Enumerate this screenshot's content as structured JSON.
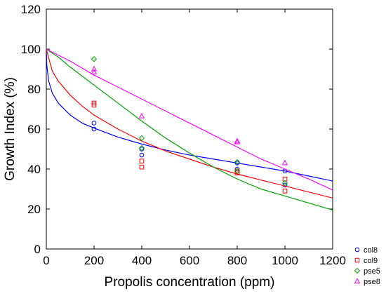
{
  "chart_data": {
    "type": "scatter",
    "title": "",
    "xlabel": "Propolis concentration (ppm)",
    "ylabel": "Growth Index (%)",
    "xlim": [
      0,
      1200
    ],
    "ylim": [
      0,
      120
    ],
    "x_ticks": [
      0,
      200,
      400,
      600,
      800,
      1000,
      1200
    ],
    "y_ticks": [
      0,
      20,
      40,
      60,
      80,
      100,
      120
    ],
    "grid": false,
    "legend_position": "bottom-right-outside",
    "series": [
      {
        "name": "col8",
        "color": "#0000ff",
        "marker": "circle",
        "points": [
          [
            200,
            63
          ],
          [
            200,
            60
          ],
          [
            400,
            50
          ],
          [
            400,
            47
          ],
          [
            800,
            43
          ],
          [
            800,
            40
          ],
          [
            1000,
            39
          ],
          [
            1000,
            32
          ]
        ],
        "fit": [
          [
            0,
            100
          ],
          [
            2,
            92
          ],
          [
            10,
            84
          ],
          [
            25,
            78
          ],
          [
            50,
            73
          ],
          [
            100,
            67
          ],
          [
            150,
            63
          ],
          [
            200,
            60.5
          ],
          [
            300,
            56
          ],
          [
            400,
            52.5
          ],
          [
            500,
            49.5
          ],
          [
            600,
            47
          ],
          [
            700,
            45
          ],
          [
            800,
            43
          ],
          [
            900,
            41
          ],
          [
            1000,
            39
          ],
          [
            1100,
            36.5
          ],
          [
            1200,
            34
          ]
        ]
      },
      {
        "name": "col9",
        "color": "#ff0000",
        "marker": "square",
        "points": [
          [
            200,
            73
          ],
          [
            200,
            72
          ],
          [
            400,
            44
          ],
          [
            400,
            41
          ],
          [
            800,
            39
          ],
          [
            800,
            38
          ],
          [
            1000,
            35
          ],
          [
            1000,
            29
          ]
        ],
        "fit": [
          [
            0,
            100
          ],
          [
            25,
            89
          ],
          [
            50,
            84
          ],
          [
            100,
            77
          ],
          [
            150,
            71.5
          ],
          [
            200,
            67
          ],
          [
            300,
            60
          ],
          [
            400,
            54
          ],
          [
            500,
            49
          ],
          [
            600,
            45
          ],
          [
            700,
            41
          ],
          [
            800,
            37.5
          ],
          [
            900,
            34.5
          ],
          [
            1000,
            31.5
          ],
          [
            1100,
            28.5
          ],
          [
            1200,
            25.5
          ]
        ]
      },
      {
        "name": "pse5",
        "color": "#00a000",
        "marker": "diamond",
        "points": [
          [
            200,
            95
          ],
          [
            400,
            55.5
          ],
          [
            400,
            50.5
          ],
          [
            800,
            43.5
          ],
          [
            800,
            39
          ],
          [
            1000,
            33
          ]
        ],
        "fit": [
          [
            0,
            100
          ],
          [
            50,
            96
          ],
          [
            100,
            91
          ],
          [
            200,
            82
          ],
          [
            300,
            73
          ],
          [
            400,
            64
          ],
          [
            500,
            55.5
          ],
          [
            600,
            48
          ],
          [
            700,
            41
          ],
          [
            800,
            35
          ],
          [
            900,
            30
          ],
          [
            1000,
            26.5
          ],
          [
            1100,
            23
          ],
          [
            1200,
            19.5
          ]
        ]
      },
      {
        "name": "pse8",
        "color": "#ff00ff",
        "marker": "triangle",
        "points": [
          [
            200,
            90
          ],
          [
            200,
            88.5
          ],
          [
            400,
            66.5
          ],
          [
            800,
            54
          ],
          [
            800,
            53.5
          ],
          [
            1000,
            43
          ]
        ],
        "fit": [
          [
            0,
            100
          ],
          [
            100,
            94
          ],
          [
            200,
            87
          ],
          [
            300,
            81
          ],
          [
            400,
            75
          ],
          [
            500,
            69
          ],
          [
            600,
            63
          ],
          [
            700,
            57
          ],
          [
            800,
            51
          ],
          [
            900,
            45
          ],
          [
            1000,
            40
          ],
          [
            1100,
            35
          ],
          [
            1200,
            29.5
          ]
        ]
      }
    ]
  }
}
